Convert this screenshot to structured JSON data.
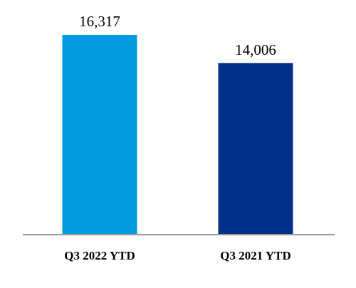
{
  "chart_data": {
    "type": "bar",
    "categories": [
      "Q3 2022 YTD",
      "Q3 2021 YTD"
    ],
    "values": [
      16317,
      14006
    ],
    "value_labels": [
      "16,317",
      "14,006"
    ],
    "colors": [
      "#009ADE",
      "#003087"
    ],
    "axis_color": "#999999",
    "ylim": [
      0,
      18000
    ],
    "grid": false,
    "legend": "none"
  }
}
